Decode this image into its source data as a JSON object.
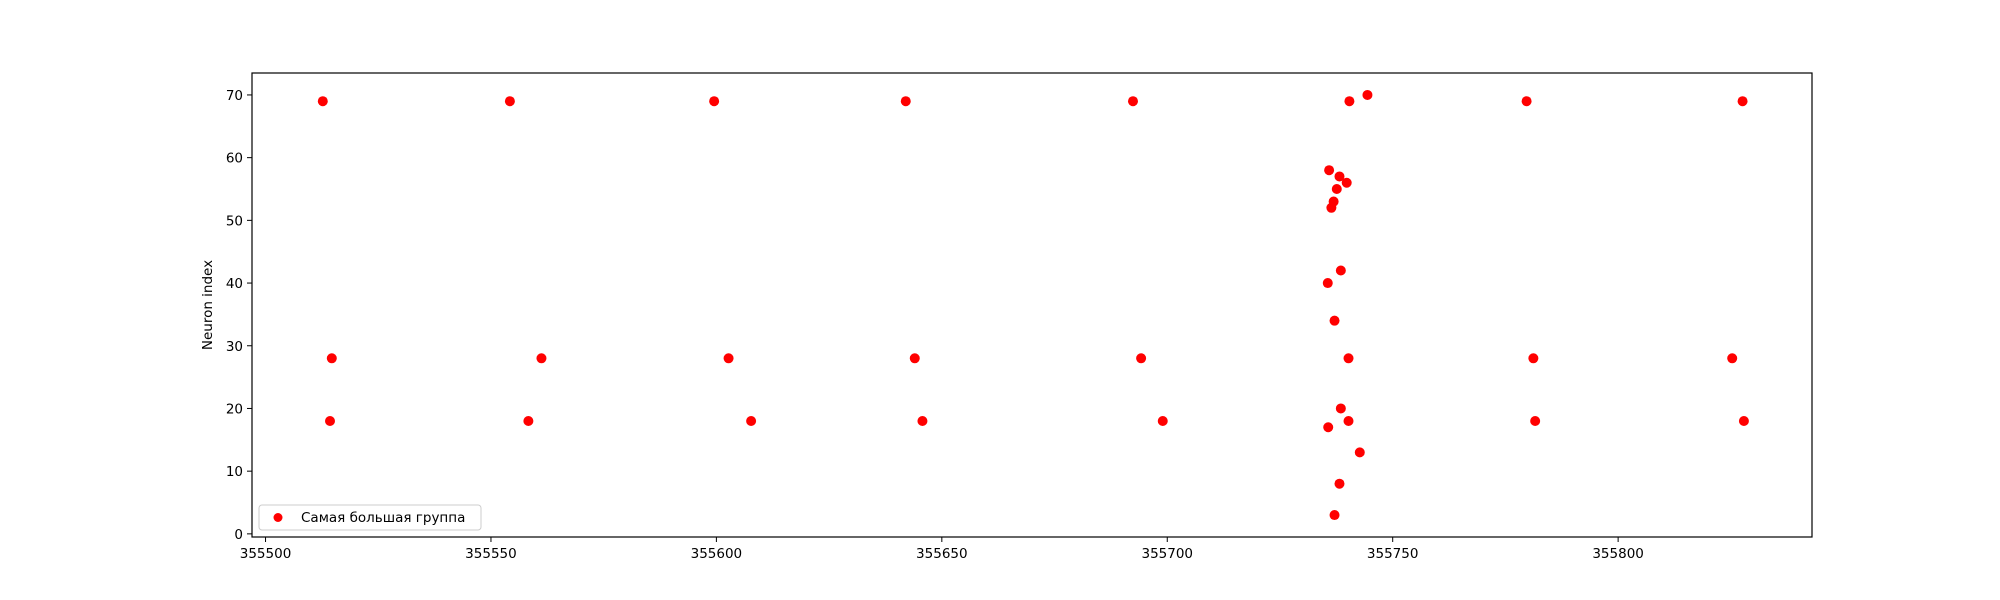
{
  "chart_data": {
    "type": "scatter",
    "title": "",
    "xlabel": "",
    "ylabel": "Neuron index",
    "xlim": [
      355497,
      355843
    ],
    "ylim": [
      -0.5,
      73.5
    ],
    "xticks": [
      355500,
      355550,
      355600,
      355650,
      355700,
      355750,
      355800
    ],
    "yticks": [
      0,
      10,
      20,
      30,
      40,
      50,
      60,
      70
    ],
    "grid": false,
    "legend_position": "lower-left",
    "series": [
      {
        "name": "Самая большая группа",
        "color": "#ff0000",
        "points": [
          [
            355512.7,
            69
          ],
          [
            355514.7,
            28
          ],
          [
            355514.3,
            18
          ],
          [
            355554.2,
            69
          ],
          [
            355561.2,
            28
          ],
          [
            355558.3,
            18
          ],
          [
            355599.5,
            69
          ],
          [
            355602.7,
            28
          ],
          [
            355607.7,
            18
          ],
          [
            355642.0,
            69
          ],
          [
            355644.0,
            28
          ],
          [
            355645.7,
            18
          ],
          [
            355692.4,
            69
          ],
          [
            355694.2,
            28
          ],
          [
            355699.0,
            18
          ],
          [
            355740.4,
            69
          ],
          [
            355744.4,
            70
          ],
          [
            355735.9,
            58
          ],
          [
            355738.2,
            57
          ],
          [
            355739.8,
            56
          ],
          [
            355737.6,
            55
          ],
          [
            355736.9,
            53
          ],
          [
            355736.4,
            52
          ],
          [
            355738.5,
            42
          ],
          [
            355735.6,
            40
          ],
          [
            355737.1,
            34
          ],
          [
            355740.2,
            28
          ],
          [
            355738.5,
            20
          ],
          [
            355740.2,
            18
          ],
          [
            355735.7,
            17
          ],
          [
            355742.7,
            13
          ],
          [
            355738.2,
            8
          ],
          [
            355737.1,
            3
          ],
          [
            355779.7,
            69
          ],
          [
            355781.2,
            28
          ],
          [
            355781.6,
            18
          ],
          [
            355827.6,
            69
          ],
          [
            355825.3,
            28
          ],
          [
            355827.9,
            18
          ]
        ]
      }
    ]
  }
}
